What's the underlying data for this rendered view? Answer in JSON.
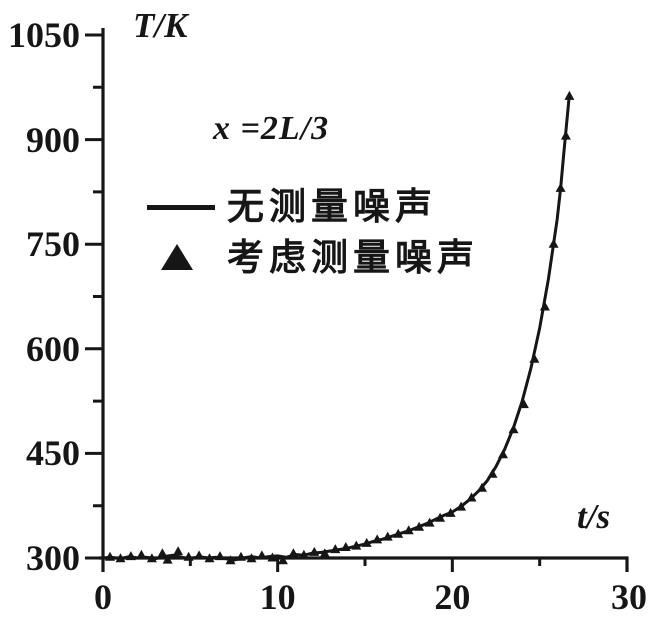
{
  "figure": {
    "y_axis_title": "T/K",
    "x_axis_title": "t/s",
    "annotation": "x =2L/3",
    "ink_color": "#161616",
    "background": "#ffffff",
    "legend": [
      {
        "marker": "line",
        "label": "无测量噪声"
      },
      {
        "marker": "triangle",
        "label": "考虑测量噪声"
      }
    ]
  },
  "chart_data": {
    "type": "line",
    "title": "",
    "xlabel": "t/s",
    "ylabel": "T/K",
    "xlim": [
      0,
      30
    ],
    "ylim": [
      300,
      1050
    ],
    "xticks": [
      0,
      10,
      20,
      30
    ],
    "xticks_minor": [
      5,
      15,
      25
    ],
    "yticks": [
      300,
      450,
      600,
      750,
      900,
      1050
    ],
    "yticks_minor": [
      375,
      525,
      675,
      825,
      975
    ],
    "grid": false,
    "legend_position": "upper-left-inside",
    "annotation": "x =2L/3",
    "series": [
      {
        "name": "无测量噪声",
        "type": "line",
        "x": [
          0,
          0.5,
          1,
          1.5,
          2,
          2.5,
          3,
          3.5,
          4,
          4.5,
          5,
          5.5,
          6,
          6.5,
          7,
          7.5,
          8,
          8.5,
          9,
          9.5,
          10,
          10.5,
          11,
          11.5,
          12,
          12.5,
          13,
          13.5,
          14,
          14.5,
          15,
          15.5,
          16,
          16.5,
          17,
          17.5,
          18,
          18.5,
          19,
          19.5,
          20,
          20.5,
          21,
          21.5,
          22,
          22.5,
          23,
          23.5,
          24,
          24.5,
          25,
          25.5,
          26,
          26.2,
          26.4,
          26.7
        ],
        "y": [
          300,
          301,
          299,
          302,
          300,
          301,
          299,
          302,
          304,
          301,
          299,
          302,
          300,
          301,
          299,
          297,
          300,
          302,
          300,
          302,
          303,
          301,
          305,
          304,
          307,
          308,
          310,
          312,
          314,
          317,
          320,
          324,
          327,
          331,
          335,
          339,
          344,
          349,
          355,
          361,
          366,
          374,
          384,
          396,
          411,
          431,
          456,
          487,
          525,
          572,
          630,
          700,
          785,
          830,
          885,
          965
        ]
      },
      {
        "name": "考虑测量噪声",
        "type": "scatter",
        "marker": "triangle",
        "x": [
          0.4,
          1.0,
          1.6,
          2.2,
          2.8,
          3.4,
          3.7,
          4.3,
          4.9,
          5.5,
          6.1,
          6.7,
          7.3,
          7.9,
          8.5,
          9.1,
          9.7,
          10.3,
          10.9,
          11.5,
          12.1,
          12.7,
          13.3,
          13.9,
          14.5,
          15.1,
          15.7,
          16.3,
          16.9,
          17.5,
          18.1,
          18.7,
          19.3,
          19.9,
          20.5,
          21.1,
          21.7,
          22.3,
          22.9,
          23.5,
          24.1,
          24.7,
          25.3,
          25.8,
          26.2,
          26.5,
          26.7
        ],
        "y": [
          301,
          299,
          302,
          304,
          299,
          306,
          297,
          309,
          301,
          303,
          299,
          302,
          296,
          301,
          299,
          303,
          300,
          296,
          306,
          304,
          308,
          306,
          312,
          315,
          317,
          321,
          326,
          330,
          334,
          339,
          344,
          350,
          357,
          364,
          373,
          386,
          400,
          420,
          448,
          484,
          520,
          585,
          660,
          750,
          830,
          905,
          962
        ]
      }
    ]
  }
}
